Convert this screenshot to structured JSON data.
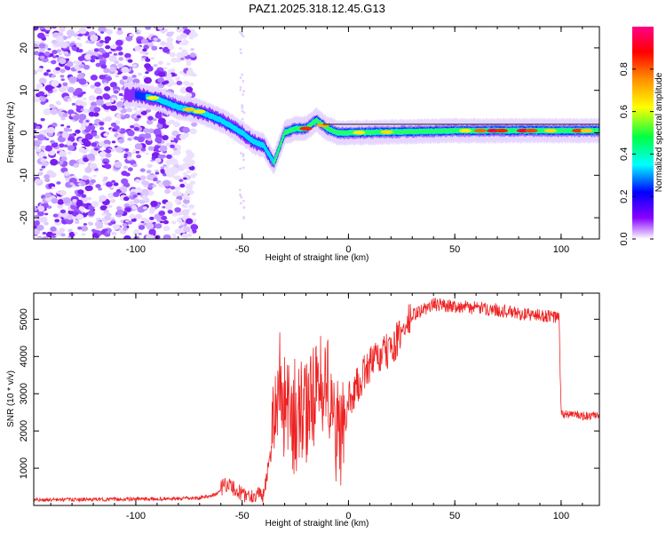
{
  "title": "PAZ1.2025.318.12.45.G13",
  "chart_data": [
    {
      "type": "heatmap",
      "name": "spectrogram",
      "xlabel": "Height of straight line (km)",
      "ylabel": "Frequency (Hz)",
      "xlim": [
        -148,
        118
      ],
      "ylim": [
        -25,
        25
      ],
      "xticks": [
        -100,
        -50,
        0,
        50,
        100
      ],
      "yticks": [
        -20,
        -10,
        0,
        10,
        20
      ],
      "colorbar": {
        "label": "Normalized spectral amplitude",
        "range": [
          0,
          1
        ],
        "ticks": [
          0.0,
          0.2,
          0.4,
          0.6,
          0.8
        ],
        "tick_labels": [
          "0.0",
          "0.2",
          "0.4",
          "0.6",
          "0.8"
        ],
        "colormap": [
          "#ffffff",
          "#8800ff",
          "#0000ff",
          "#00ffff",
          "#00ff00",
          "#ffff00",
          "#ff8800",
          "#ff0000",
          "#ff0088"
        ]
      },
      "ridge": {
        "description_points_x": [
          -100,
          -90,
          -80,
          -70,
          -60,
          -50,
          -45,
          -40,
          -35,
          -30,
          -25,
          -20,
          -15,
          -10,
          -5,
          0,
          50,
          100,
          118
        ],
        "description_points_y": [
          9,
          8,
          6,
          5,
          3,
          0,
          -2,
          -3,
          -7,
          0,
          1,
          1,
          3,
          1,
          0,
          0,
          0.5,
          0.5,
          0.5
        ]
      }
    },
    {
      "type": "line",
      "name": "snr",
      "xlabel": "Height of straight line (km)",
      "ylabel": "SNR (10 * v/v)",
      "xlim": [
        -148,
        118
      ],
      "ylim": [
        0,
        5700
      ],
      "xticks": [
        -100,
        -50,
        0,
        50,
        100
      ],
      "yticks": [
        1000,
        2000,
        3000,
        4000,
        5000
      ],
      "color": "#ee2222",
      "x": [
        -148,
        -120,
        -100,
        -80,
        -70,
        -62,
        -58,
        -55,
        -50,
        -45,
        -40,
        -36,
        -33,
        -30,
        -25,
        -20,
        -15,
        -10,
        -6,
        -4,
        0,
        5,
        10,
        15,
        20,
        25,
        30,
        40,
        50,
        60,
        70,
        80,
        90,
        99,
        100,
        105,
        110,
        118
      ],
      "y": [
        150,
        160,
        170,
        180,
        200,
        300,
        600,
        500,
        300,
        250,
        300,
        1500,
        3500,
        2500,
        2200,
        2500,
        3000,
        3300,
        2000,
        1600,
        2800,
        3300,
        3800,
        4000,
        4200,
        4600,
        5100,
        5400,
        5350,
        5300,
        5250,
        5150,
        5100,
        5050,
        2450,
        2450,
        2400,
        2400
      ]
    }
  ]
}
